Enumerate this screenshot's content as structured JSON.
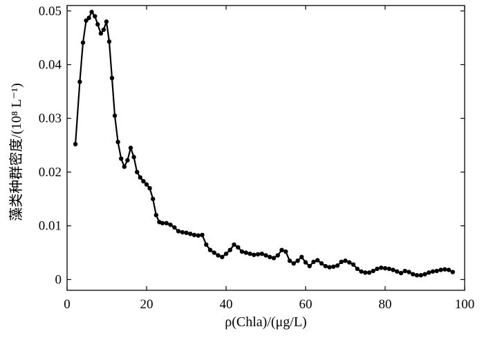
{
  "chart_data": {
    "type": "line",
    "title": "",
    "xlabel": "ρ(Chla)/(μg/L)",
    "ylabel": "藻类种群密度/(10⁸ L⁻¹)",
    "xlim": [
      0,
      100
    ],
    "ylim": [
      -0.002,
      0.051
    ],
    "xticks": [
      0,
      20,
      40,
      60,
      80,
      100
    ],
    "xtick_labels": [
      "0",
      "20",
      "40",
      "60",
      "80",
      "100"
    ],
    "yticks": [
      0,
      0.01,
      0.02,
      0.03,
      0.04,
      0.05
    ],
    "ytick_labels": [
      "0",
      "0.01",
      "0.02",
      "0.03",
      "0.04",
      "0.05"
    ],
    "grid": false,
    "legend": "none",
    "marker": "filled-circle",
    "color": "#000000",
    "x": [
      2.1,
      3.2,
      4.0,
      4.8,
      5.5,
      6.2,
      7.0,
      7.7,
      8.5,
      9.2,
      9.9,
      10.6,
      11.3,
      12.0,
      12.8,
      13.6,
      14.4,
      15.2,
      16.0,
      16.8,
      17.6,
      18.4,
      19.2,
      20.0,
      20.8,
      21.6,
      22.4,
      23.2,
      24.0,
      25.0,
      26.0,
      27.0,
      28.0,
      29.0,
      30.0,
      31.0,
      32.0,
      33.0,
      34.0,
      35.0,
      36.0,
      37.0,
      38.0,
      39.0,
      40.0,
      41.0,
      42.0,
      43.0,
      44.0,
      45.0,
      46.0,
      47.0,
      48.0,
      49.0,
      50.0,
      51.0,
      52.0,
      53.0,
      54.0,
      55.0,
      56.0,
      57.0,
      58.0,
      59.0,
      60.0,
      61.0,
      62.0,
      63.0,
      64.0,
      65.0,
      66.0,
      67.0,
      68.0,
      69.0,
      70.0,
      71.0,
      72.0,
      73.0,
      74.0,
      75.0,
      76.0,
      77.0,
      78.0,
      79.0,
      80.0,
      81.0,
      82.0,
      83.0,
      84.0,
      85.0,
      86.0,
      87.0,
      88.0,
      89.0,
      90.0,
      91.0,
      92.0,
      93.0,
      94.0,
      95.0,
      96.0,
      97.0
    ],
    "y": [
      0.0252,
      0.0368,
      0.0441,
      0.0482,
      0.0487,
      0.0498,
      0.049,
      0.0475,
      0.0458,
      0.0465,
      0.048,
      0.0443,
      0.0375,
      0.0305,
      0.0256,
      0.0225,
      0.021,
      0.0222,
      0.0245,
      0.0228,
      0.02,
      0.019,
      0.0183,
      0.0177,
      0.017,
      0.015,
      0.012,
      0.0107,
      0.0105,
      0.0105,
      0.0102,
      0.0097,
      0.009,
      0.0088,
      0.0087,
      0.0085,
      0.0083,
      0.0082,
      0.0083,
      0.0065,
      0.0055,
      0.005,
      0.0045,
      0.0042,
      0.0048,
      0.0055,
      0.0065,
      0.006,
      0.0052,
      0.005,
      0.0048,
      0.0046,
      0.0047,
      0.0048,
      0.0045,
      0.0042,
      0.004,
      0.0045,
      0.0055,
      0.0052,
      0.0035,
      0.003,
      0.0035,
      0.0042,
      0.0032,
      0.0025,
      0.0033,
      0.0036,
      0.003,
      0.0025,
      0.0023,
      0.0024,
      0.0026,
      0.0033,
      0.0035,
      0.0032,
      0.0028,
      0.002,
      0.0015,
      0.0013,
      0.0013,
      0.0016,
      0.002,
      0.0022,
      0.0021,
      0.002,
      0.0018,
      0.0015,
      0.0012,
      0.0016,
      0.0014,
      0.001,
      0.0008,
      0.0008,
      0.001,
      0.0013,
      0.0015,
      0.0016,
      0.0018,
      0.0019,
      0.0018,
      0.0014
    ]
  }
}
